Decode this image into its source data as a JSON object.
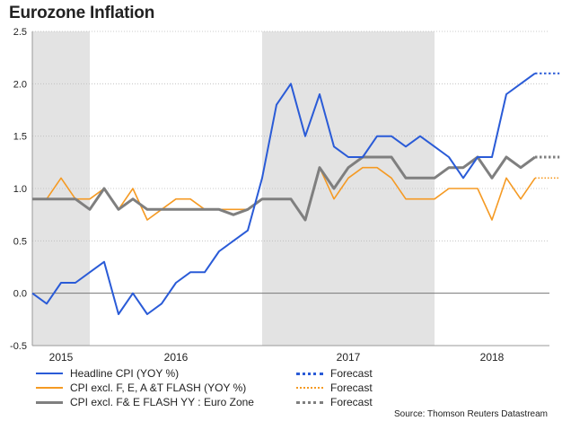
{
  "title": "Eurozone Inflation",
  "source": "Source: Thomson Reuters Datastream",
  "legend": {
    "rows": [
      {
        "label": "Headline CPI (YOY %)",
        "forecast_label": "Forecast",
        "color": "#2a5bd7"
      },
      {
        "label": "CPI excl. F, E, A &T FLASH (YOY %)",
        "forecast_label": "Forecast",
        "color": "#f59a23"
      },
      {
        "label": "CPI excl. F& E FLASH YY : Euro Zone",
        "forecast_label": "Forecast",
        "color": "#7f7f7f"
      }
    ]
  },
  "chart_data": {
    "type": "line",
    "title": "Eurozone Inflation",
    "xlabel": "",
    "ylabel": "",
    "ylim": [
      -0.5,
      2.5
    ],
    "yticks": [
      -0.5,
      0.0,
      0.5,
      1.0,
      1.5,
      2.0,
      2.5
    ],
    "ytick_labels": [
      "-0.5",
      "0.0",
      "0.5",
      "1.0",
      "1.5",
      "2.0",
      "2.5"
    ],
    "x_period_labels": [
      "2015",
      "2016",
      "2017",
      "2018"
    ],
    "x_period_month_spans": [
      [
        0,
        4
      ],
      [
        4,
        16
      ],
      [
        16,
        28
      ],
      [
        28,
        36
      ]
    ],
    "shaded_month_spans": [
      [
        0,
        4
      ],
      [
        16,
        28
      ]
    ],
    "x_month_count": 36,
    "x_start": "Sep 2015",
    "grid": "horizontal dotted",
    "zero_line": true,
    "legend_position": "bottom",
    "colors": {
      "headline": "#2a5bd7",
      "core_a": "#f59a23",
      "core_b": "#7f7f7f",
      "shade": "#e3e3e3"
    },
    "series": [
      {
        "name": "Headline CPI (YOY %)",
        "values": [
          0.0,
          -0.1,
          0.1,
          0.1,
          0.2,
          0.3,
          -0.2,
          0.0,
          -0.2,
          -0.1,
          0.1,
          0.2,
          0.2,
          0.4,
          0.5,
          0.6,
          1.1,
          1.8,
          2.0,
          1.5,
          1.9,
          1.4,
          1.3,
          1.3,
          1.5,
          1.5,
          1.4,
          1.5,
          1.4,
          1.3,
          1.1,
          1.3,
          1.3,
          1.9,
          2.0,
          2.1
        ],
        "forecast": [
          2.1,
          2.1
        ]
      },
      {
        "name": "CPI excl. F, E, A &T FLASH (YOY %)",
        "values": [
          0.9,
          0.9,
          1.1,
          0.9,
          0.9,
          1.0,
          0.8,
          1.0,
          0.7,
          0.8,
          0.9,
          0.9,
          0.8,
          0.8,
          0.8,
          0.8,
          0.9,
          0.9,
          0.9,
          0.7,
          1.2,
          0.9,
          1.1,
          1.2,
          1.2,
          1.1,
          0.9,
          0.9,
          0.9,
          1.0,
          1.0,
          1.0,
          0.7,
          1.1,
          0.9,
          1.1
        ],
        "forecast": [
          1.1,
          1.1
        ]
      },
      {
        "name": "CPI excl. F& E FLASH YY : Euro Zone",
        "values": [
          0.9,
          0.9,
          0.9,
          0.9,
          0.8,
          1.0,
          0.8,
          0.9,
          0.8,
          0.8,
          0.8,
          0.8,
          0.8,
          0.8,
          0.75,
          0.8,
          0.9,
          0.9,
          0.9,
          0.7,
          1.2,
          1.0,
          1.2,
          1.3,
          1.3,
          1.3,
          1.1,
          1.1,
          1.1,
          1.2,
          1.2,
          1.3,
          1.1,
          1.3,
          1.2,
          1.3
        ],
        "forecast": [
          1.3,
          1.3
        ]
      }
    ]
  }
}
